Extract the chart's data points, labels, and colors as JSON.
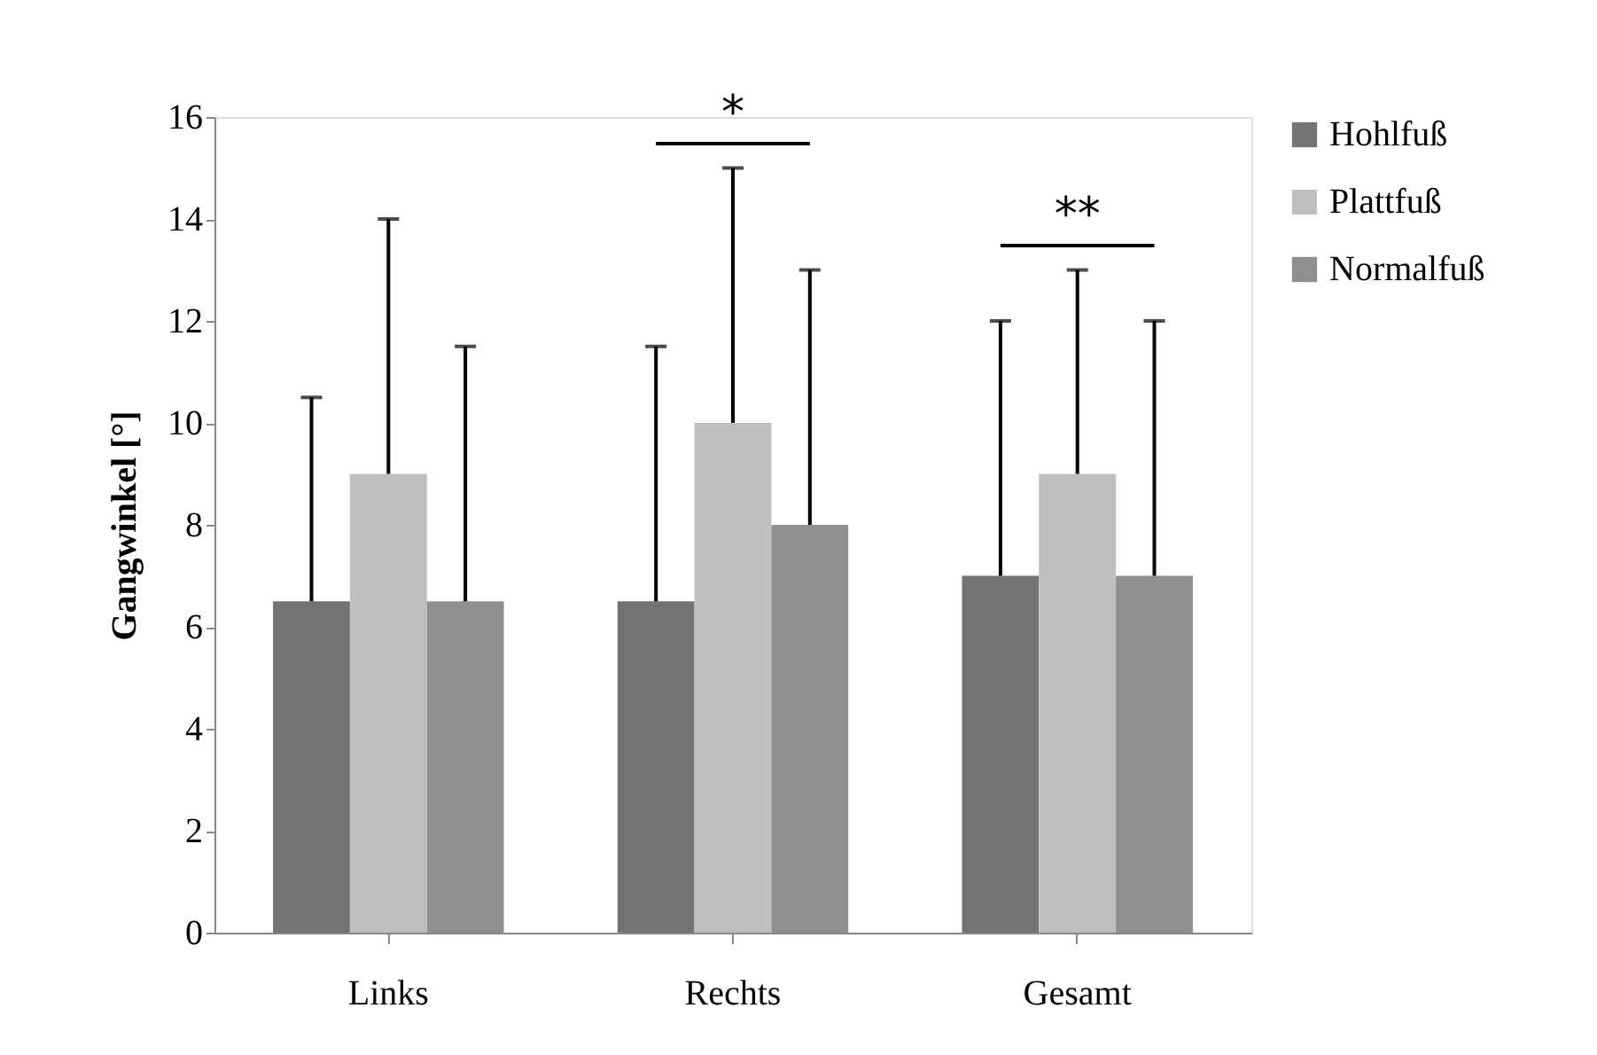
{
  "chart_data": {
    "type": "bar",
    "ylabel": "Gangwinkel [°]",
    "categories": [
      "Links",
      "Rechts",
      "Gesamt"
    ],
    "series": [
      {
        "name": "Hohlfuß",
        "color": "#737373",
        "values": [
          6.5,
          6.5,
          7
        ],
        "errors": [
          [
            6.5,
            10.5
          ],
          [
            6.5,
            11.5
          ],
          [
            7,
            12
          ]
        ]
      },
      {
        "name": "Plattfuß",
        "color": "#bfbfbf",
        "values": [
          9,
          10,
          9
        ],
        "errors": [
          [
            9,
            14
          ],
          [
            10,
            15
          ],
          [
            9,
            13
          ]
        ]
      },
      {
        "name": "Normalfuß",
        "color": "#8f8f8f",
        "values": [
          6.5,
          8,
          7
        ],
        "errors": [
          [
            6.5,
            11.5
          ],
          [
            8,
            13
          ],
          [
            7,
            12
          ]
        ]
      }
    ],
    "ylim": [
      0,
      16
    ],
    "yticks": [
      0,
      2,
      4,
      6,
      8,
      10,
      12,
      14,
      16
    ],
    "grid": false,
    "legend": "right",
    "annotations": [
      "*",
      "**"
    ]
  }
}
